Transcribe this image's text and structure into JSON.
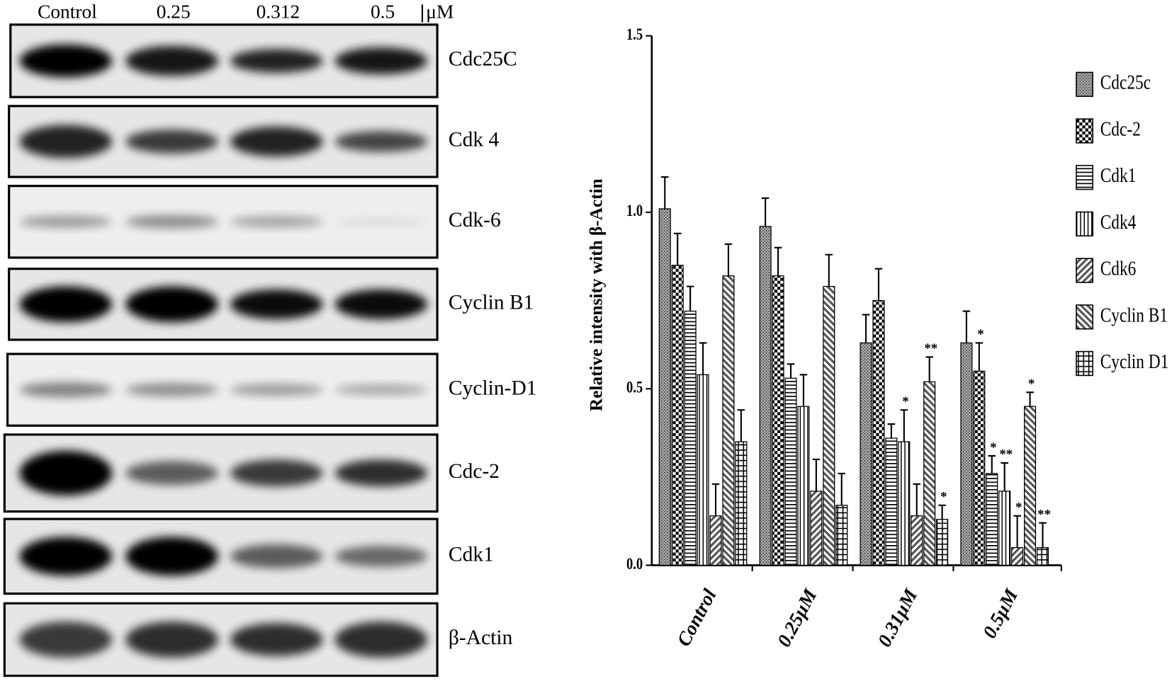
{
  "blot": {
    "lanes": [
      "Control",
      "0.25",
      "0.312",
      "0.5"
    ],
    "unit": "μM",
    "proteins": [
      "Cdc25C",
      "Cdk 4",
      "Cdk-6",
      "Cyclin B1",
      "Cyclin-D1",
      "Cdc-2",
      "Cdk1",
      "β-Actin"
    ]
  },
  "chart_data": {
    "type": "bar",
    "ylabel": "Relative intensity with β-Actin",
    "categories": [
      "Control",
      "0.25μM",
      "0.31μM",
      "0.5μM"
    ],
    "ylim": [
      0,
      1.5
    ],
    "yticks": [
      {
        "value": 0,
        "label": "0.0"
      },
      0.5,
      {
        "value": 1,
        "label": "1.0"
      },
      1.5
    ],
    "grid": false,
    "legend": "right",
    "series": [
      {
        "name": "Cdc25c",
        "color": "#000000",
        "pattern": "dots",
        "values": [
          1.01,
          0.96,
          0.63,
          0.63
        ],
        "errors": [
          0.09,
          0.08,
          0.08,
          0.09
        ],
        "annotations": [
          null,
          null,
          null,
          null
        ]
      },
      {
        "name": "Cdc-2",
        "color": "#000000",
        "pattern": "checker",
        "values": [
          0.85,
          0.82,
          0.75,
          0.55
        ],
        "errors": [
          0.09,
          0.08,
          0.09,
          0.08
        ],
        "annotations": [
          null,
          null,
          null,
          "*"
        ]
      },
      {
        "name": "Cdk1",
        "color": "#000000",
        "pattern": "hlines",
        "values": [
          0.72,
          0.53,
          0.36,
          0.26
        ],
        "errors": [
          0.07,
          0.04,
          0.04,
          0.05
        ],
        "annotations": [
          null,
          null,
          null,
          "*"
        ]
      },
      {
        "name": "Cdk4",
        "color": "#000000",
        "pattern": "vlines",
        "values": [
          0.54,
          0.45,
          0.35,
          0.21
        ],
        "errors": [
          0.09,
          0.09,
          0.09,
          0.08
        ],
        "annotations": [
          null,
          null,
          "*",
          "**"
        ]
      },
      {
        "name": "Cdk6",
        "color": "#000000",
        "pattern": "diagup",
        "values": [
          0.14,
          0.21,
          0.14,
          0.05
        ],
        "errors": [
          0.09,
          0.09,
          0.09,
          0.09
        ],
        "annotations": [
          null,
          null,
          null,
          "*"
        ]
      },
      {
        "name": "Cyclin B1",
        "color": "#000000",
        "pattern": "diagdown",
        "values": [
          0.82,
          0.79,
          0.52,
          0.45
        ],
        "errors": [
          0.09,
          0.09,
          0.07,
          0.04
        ],
        "annotations": [
          null,
          null,
          "**",
          "*"
        ]
      },
      {
        "name": "Cyclin D1",
        "color": "#000000",
        "pattern": "grid",
        "values": [
          0.35,
          0.17,
          0.13,
          0.05
        ],
        "errors": [
          0.09,
          0.09,
          0.04,
          0.07
        ],
        "annotations": [
          null,
          null,
          "*",
          "**"
        ]
      }
    ]
  }
}
